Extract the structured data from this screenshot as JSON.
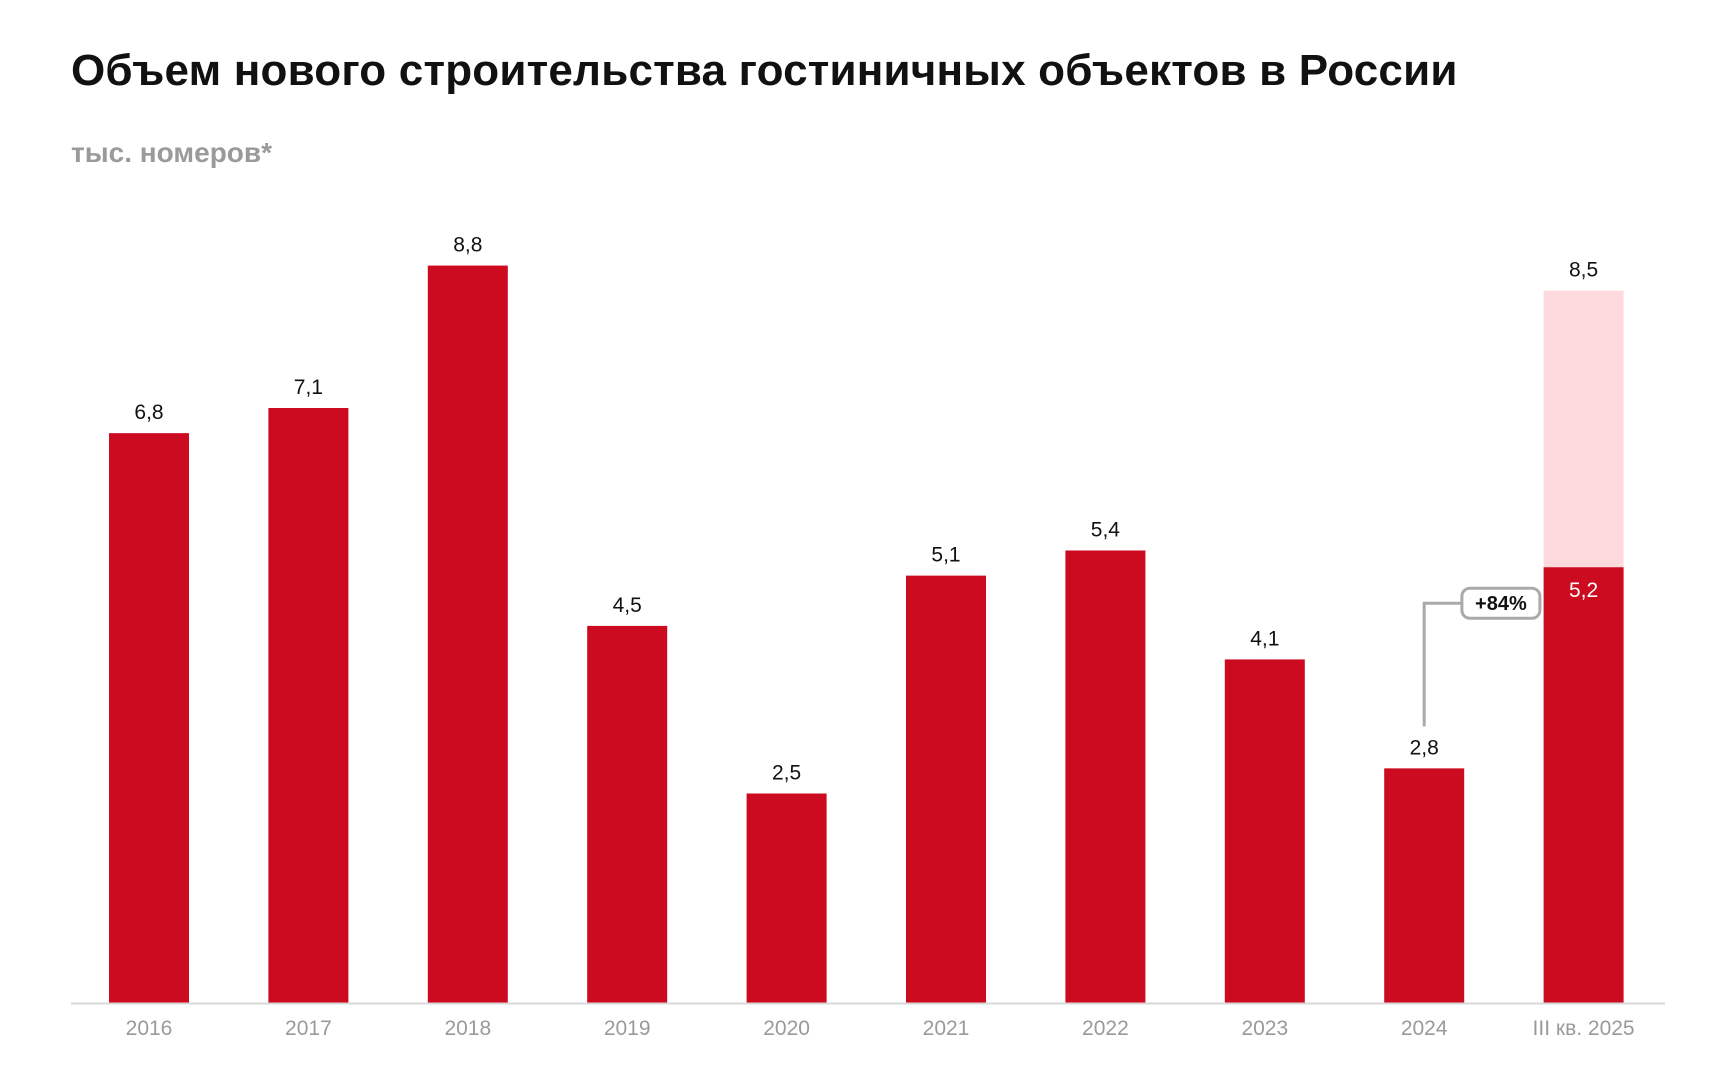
{
  "chart_data": {
    "type": "bar",
    "title": "Объем нового строительства гостиничных объектов в России",
    "subtitle": "тыс. номеров*",
    "categories": [
      "2016",
      "2017",
      "2018",
      "2019",
      "2020",
      "2021",
      "2022",
      "2023",
      "2024",
      "III кв. 2025"
    ],
    "series": [
      {
        "values": [
          6.8,
          7.1,
          8.8,
          4.5,
          2.5,
          5.1,
          5.4,
          4.1,
          2.8,
          5.2
        ]
      },
      {
        "values": [
          null,
          null,
          null,
          null,
          null,
          null,
          null,
          null,
          null,
          3.3
        ]
      }
    ],
    "value_labels": [
      "6,8",
      "7,1",
      "8,8",
      "4,5",
      "2,5",
      "5,1",
      "5,4",
      "4,1",
      "2,8",
      "5,2"
    ],
    "total_labels": [
      null,
      null,
      null,
      null,
      null,
      null,
      null,
      null,
      null,
      "8,5"
    ],
    "annotation": {
      "text": "+84%",
      "from": "2024",
      "to": "III кв. 2025"
    },
    "ylim": [
      0,
      9
    ],
    "grid": false,
    "legend": "none",
    "colors": {
      "main": "#cc0a20",
      "secondary": "#fed9de",
      "axis": "#d8d8d8",
      "callout": "#aaaaaa"
    }
  }
}
